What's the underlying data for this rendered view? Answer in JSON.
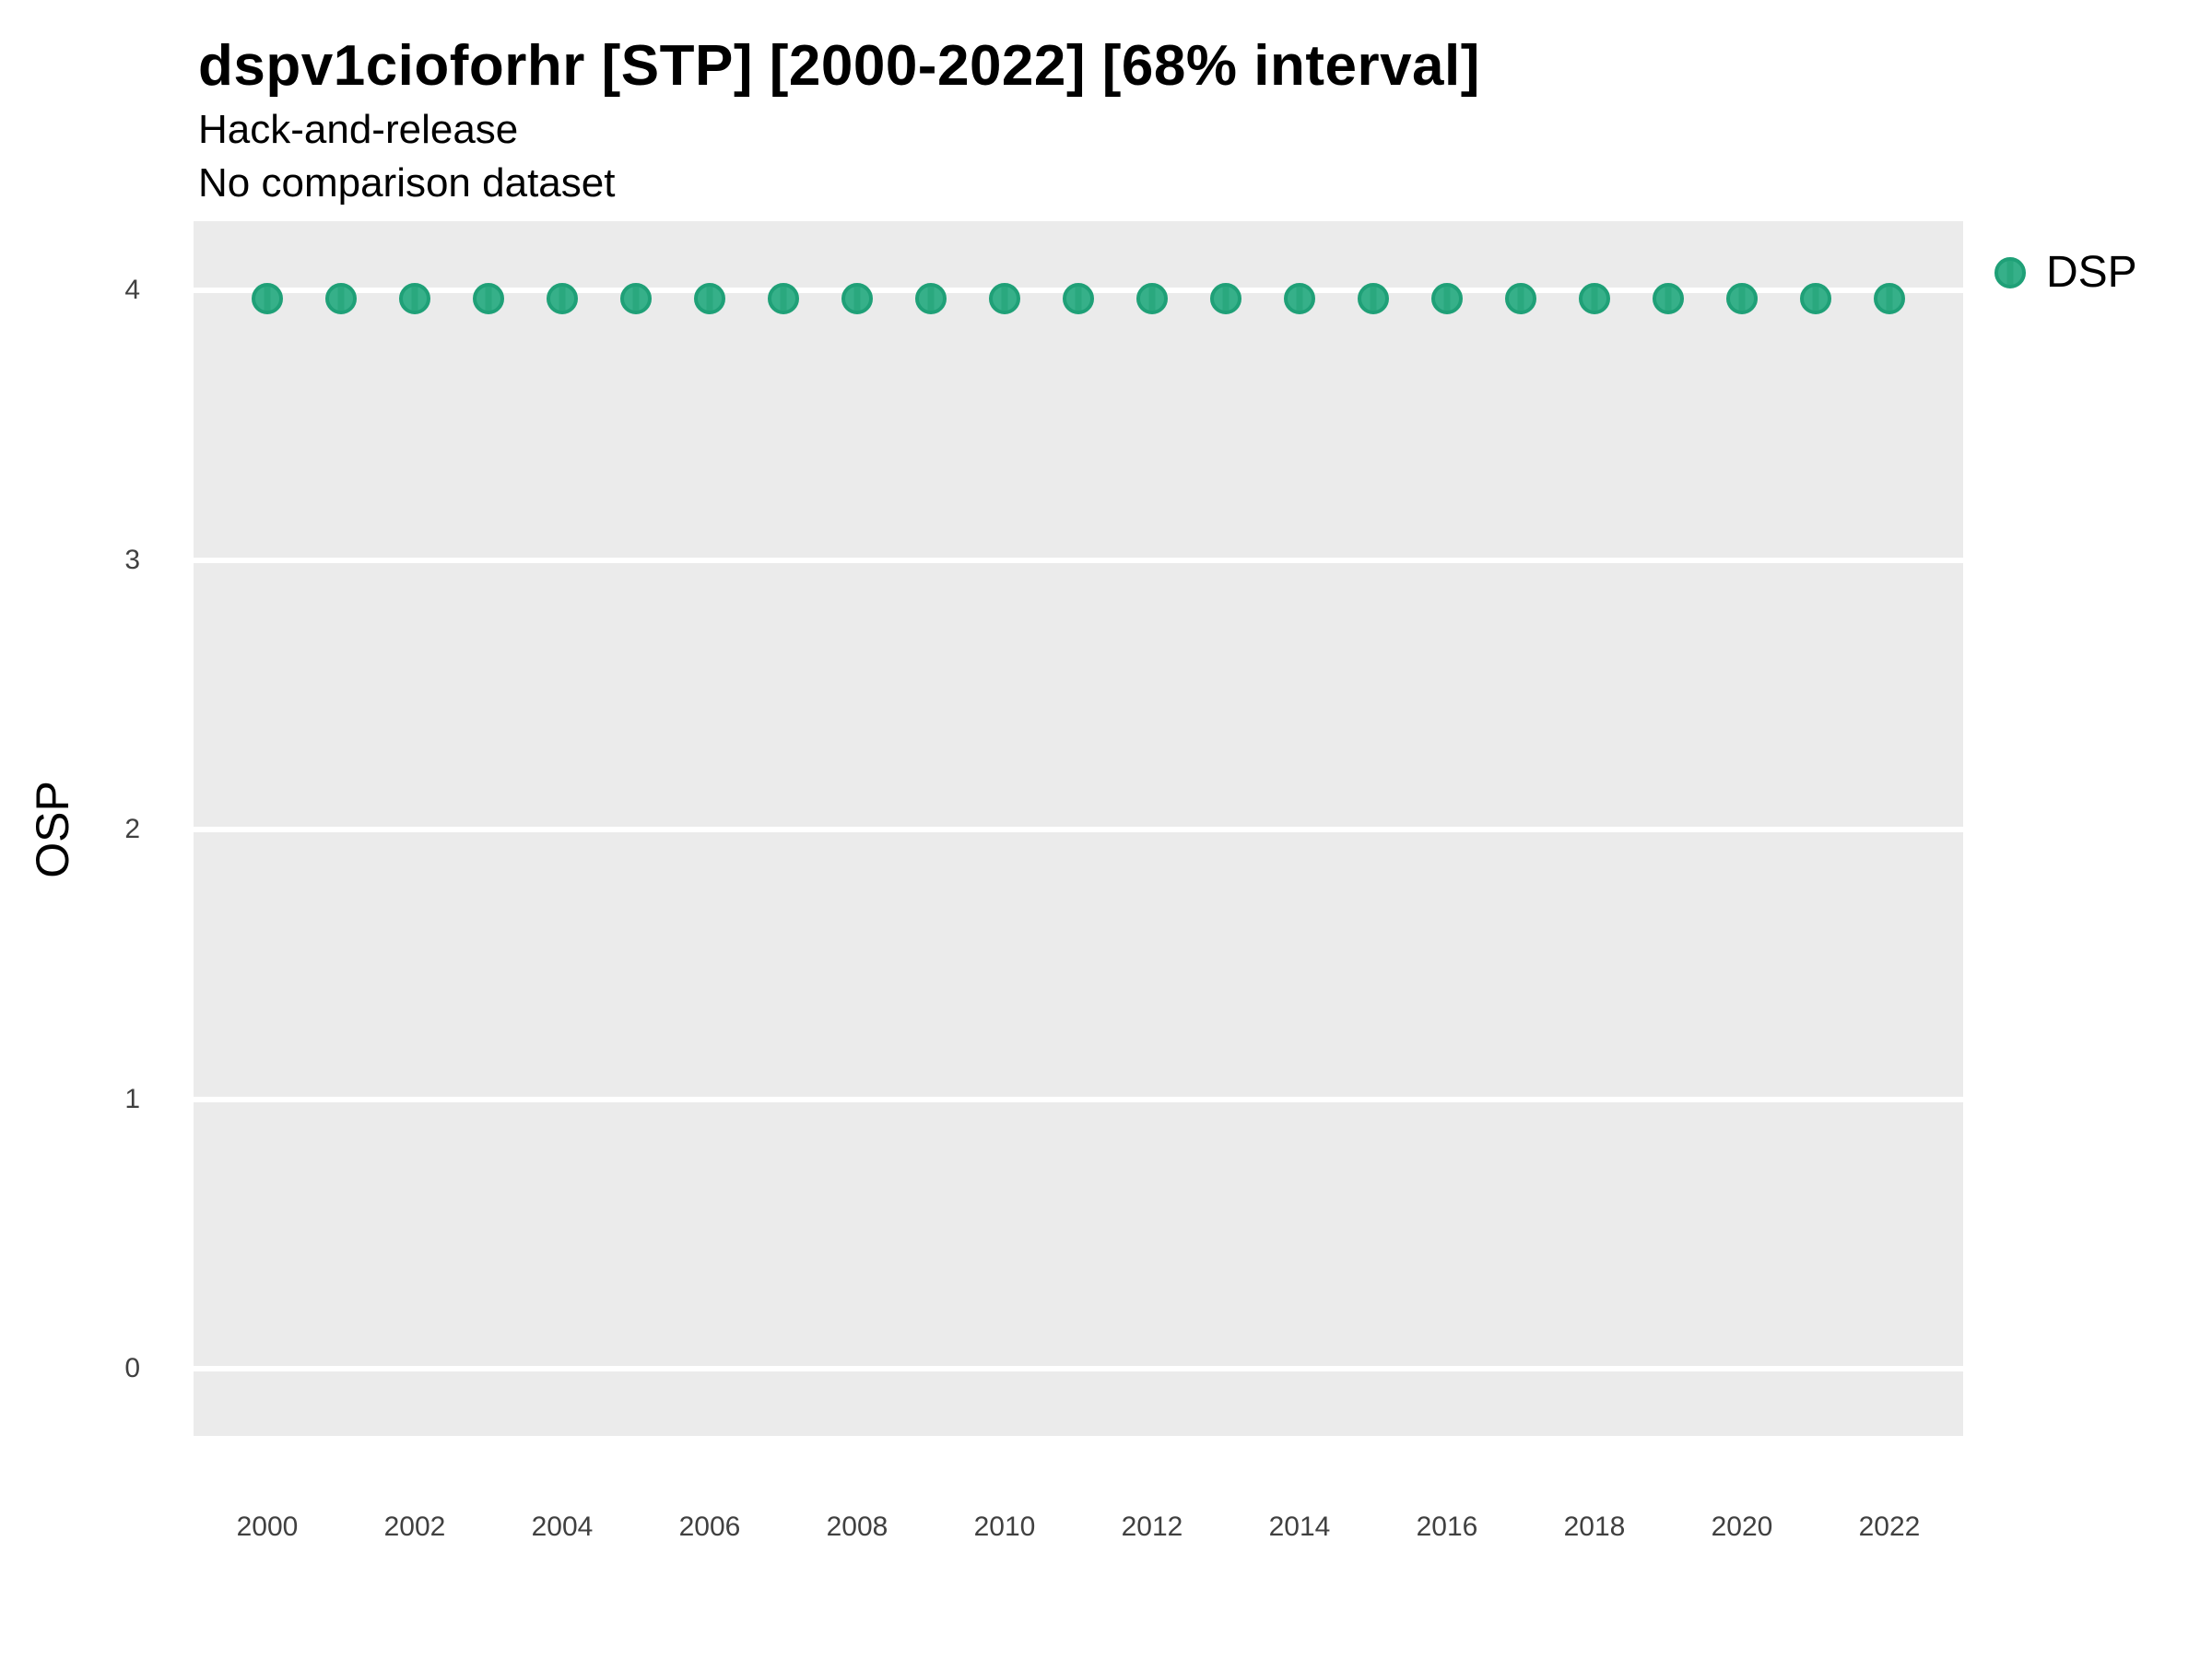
{
  "chart_data": {
    "type": "scatter",
    "title": "dspv1cioforhr [STP] [2000-2022] [68% interval]",
    "subtitle_line1": "Hack-and-release",
    "subtitle_line2": "No comparison dataset",
    "xlabel": "",
    "ylabel": "OSP",
    "x": [
      2000,
      2001,
      2002,
      2003,
      2004,
      2005,
      2006,
      2007,
      2008,
      2009,
      2010,
      2011,
      2012,
      2013,
      2014,
      2015,
      2016,
      2017,
      2018,
      2019,
      2020,
      2021,
      2022
    ],
    "series": [
      {
        "name": "DSP",
        "values": [
          3.97,
          3.97,
          3.97,
          3.97,
          3.97,
          3.97,
          3.97,
          3.97,
          3.97,
          3.97,
          3.97,
          3.97,
          3.97,
          3.97,
          3.97,
          3.97,
          3.97,
          3.97,
          3.97,
          3.97,
          3.97,
          3.97,
          3.97
        ]
      }
    ],
    "x_tick_labels": [
      "2000",
      "2002",
      "2004",
      "2006",
      "2008",
      "2010",
      "2012",
      "2014",
      "2016",
      "2018",
      "2020",
      "2022"
    ],
    "y_ticks": [
      0,
      1,
      2,
      3,
      4
    ],
    "ylim": [
      -0.25,
      4.26
    ],
    "grid": "horizontal-major-only",
    "legend": [
      {
        "name": "DSP",
        "color": "#2BAB80"
      }
    ],
    "legend_position": "top-right"
  },
  "colors": {
    "panel_bg": "#EBEBEB",
    "gridline": "#FFFFFF",
    "point_fill": "#36B089",
    "point_border": "#1FA077",
    "point_stripe": "#2AA87E",
    "tick_text": "#404040",
    "text": "#000000"
  }
}
